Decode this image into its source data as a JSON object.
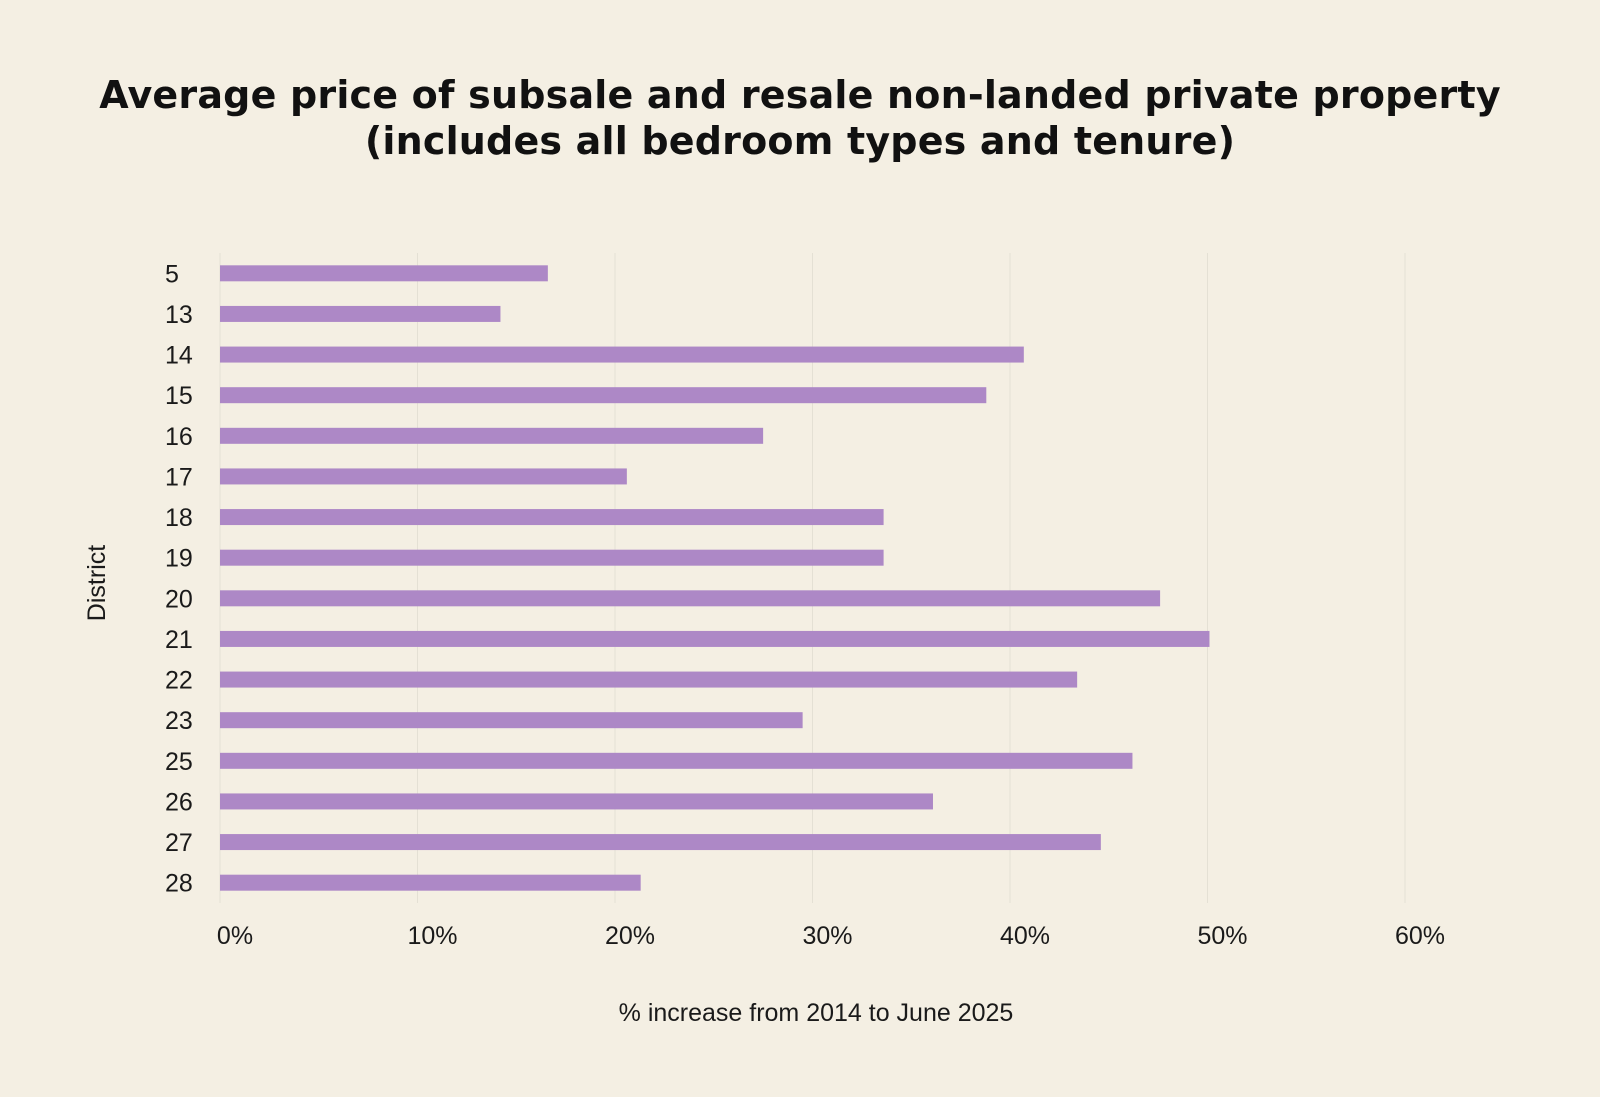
{
  "chart_data": {
    "type": "bar",
    "orientation": "horizontal",
    "title_line1": "Average price of subsale and resale non-landed private property",
    "title_line2": "(includes all bedroom types and tenure)",
    "xlabel": "% increase from 2014 to June 2025",
    "ylabel": "District",
    "categories": [
      "5",
      "13",
      "14",
      "15",
      "16",
      "17",
      "18",
      "19",
      "20",
      "21",
      "22",
      "23",
      "25",
      "26",
      "27",
      "28"
    ],
    "values": [
      16.6,
      14.2,
      40.7,
      38.8,
      27.5,
      20.6,
      33.6,
      33.6,
      47.6,
      50.1,
      43.4,
      29.5,
      46.2,
      36.1,
      44.6,
      21.3
    ],
    "xlim": [
      0,
      60
    ],
    "xticks": [
      0,
      10,
      20,
      30,
      40,
      50,
      60
    ],
    "xtick_labels": [
      "0%",
      "10%",
      "20%",
      "30%",
      "40%",
      "50%",
      "60%"
    ],
    "grid": "vertical",
    "legend": "none",
    "colors": {
      "bar": "#ad88c6",
      "background": "#f4efe3",
      "grid": "#e4e0d4",
      "text": "#1a1a1a"
    }
  }
}
